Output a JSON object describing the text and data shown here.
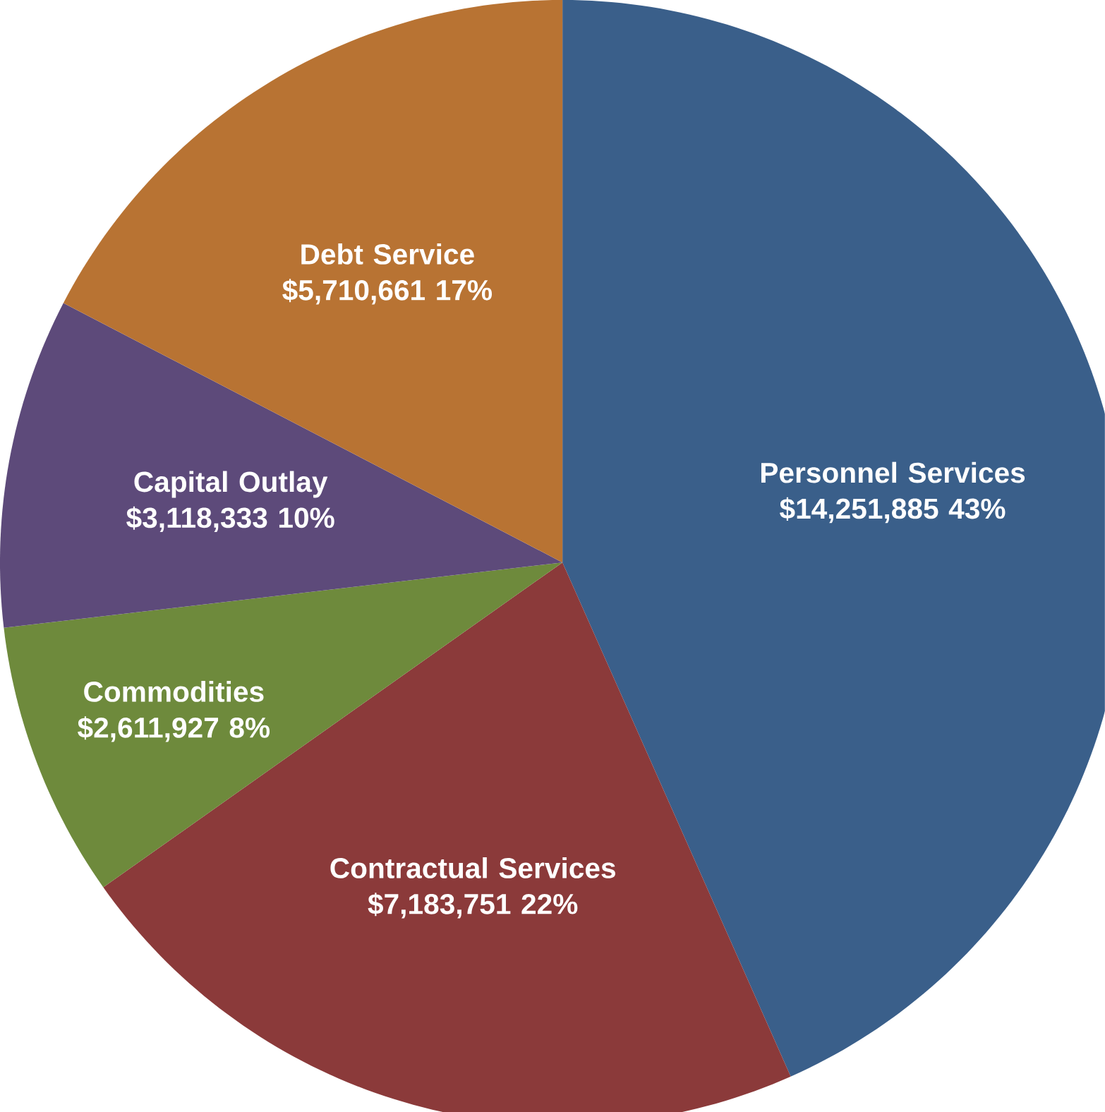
{
  "chart_data": {
    "type": "pie",
    "categories": [
      "Personnel Services",
      "Contractual Services",
      "Commodities",
      "Capital Outlay",
      "Debt Service"
    ],
    "values": [
      14251885,
      7183751,
      2611927,
      3118333,
      5710661
    ],
    "value_labels": [
      "$14,251,885 43%",
      "$7,183,751 22%",
      "$2,611,927 8%",
      "$3,118,333 10%",
      "$5,710,661 17%"
    ],
    "colors": [
      "#3a5f8a",
      "#8b3a3a",
      "#6e8a3c",
      "#5d4a7a",
      "#b87333"
    ]
  }
}
